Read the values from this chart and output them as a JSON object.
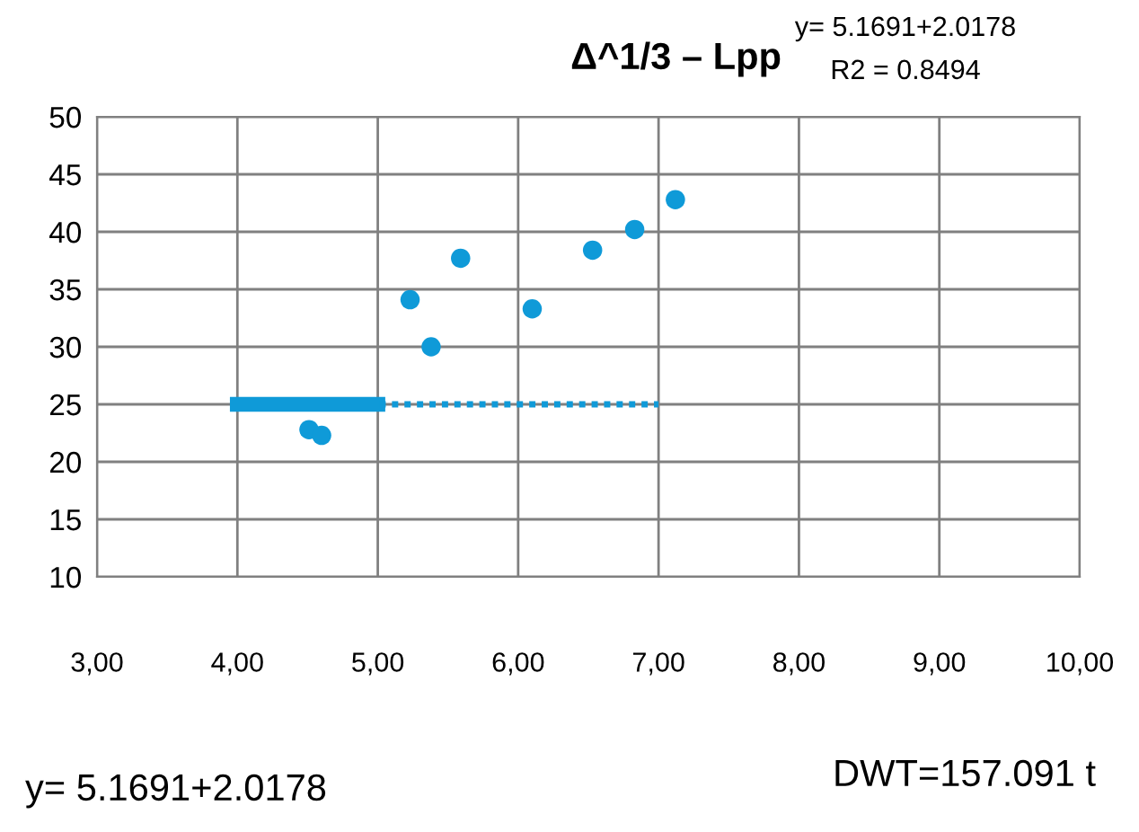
{
  "chart_data": {
    "type": "scatter",
    "title": "Δ^1/3 – Lpp",
    "series": [
      {
        "marker": "circle",
        "color": "#0f9ad8",
        "x": [
          4.51,
          4.6,
          5.23,
          5.38,
          5.59,
          6.1,
          6.53,
          6.83,
          7.12
        ],
        "values": [
          22.8,
          22.3,
          34.1,
          30.0,
          37.7,
          33.3,
          38.4,
          40.2,
          42.8
        ]
      },
      {
        "type": "line",
        "marker": "none",
        "color": "#0f9ad8",
        "line_style": "solid",
        "x": [
          4,
          5
        ],
        "values": [
          25,
          25
        ]
      },
      {
        "type": "line",
        "marker": "none",
        "color": "#0f9ad8",
        "line_style": "dotted",
        "x": [
          5,
          7
        ],
        "values": [
          25,
          25
        ]
      }
    ],
    "xlim": [
      3,
      10
    ],
    "xticks": [
      {
        "value": 3,
        "label": "3,00"
      },
      {
        "value": 4,
        "label": "4,00"
      },
      {
        "value": 5,
        "label": "5,00"
      },
      {
        "value": 6,
        "label": "6,00"
      },
      {
        "value": 7,
        "label": "7,00"
      },
      {
        "value": 8,
        "label": "8,00"
      },
      {
        "value": 9,
        "label": "9,00"
      },
      {
        "value": 10,
        "label": "10,00"
      }
    ],
    "ylim": [
      10,
      50
    ],
    "yticks": [
      10,
      15,
      20,
      25,
      30,
      35,
      40,
      45,
      50
    ],
    "grid": true,
    "annotations": [
      "y= 5.1691+2.0178",
      "R2 = 0.8494",
      "y= 5.1691+2.0178",
      "DWT=157.091 t"
    ]
  }
}
